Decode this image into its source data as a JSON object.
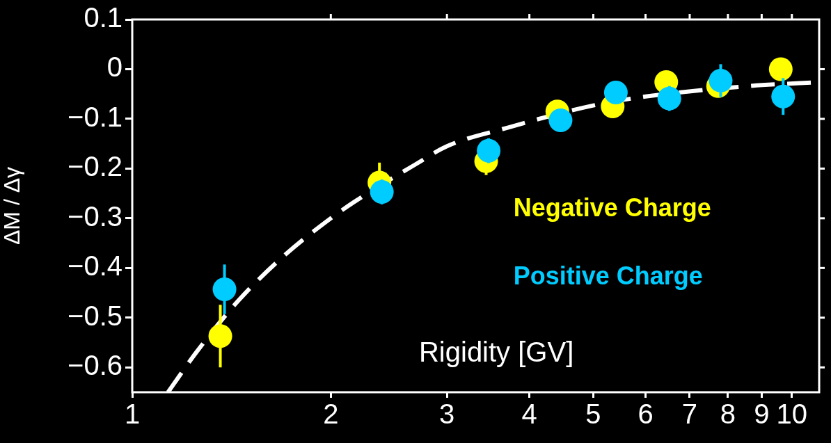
{
  "chart_data": {
    "type": "scatter",
    "xlabel": "Rigidity [GV]",
    "ylabel": "ΔM / Δγ",
    "log": "x",
    "grid": false,
    "legend": "right",
    "marker": "circle",
    "xlim": [
      1,
      11
    ],
    "xticks": [
      1,
      2,
      3,
      4,
      5,
      6,
      7,
      8,
      9,
      10
    ],
    "ylim": [
      -0.65,
      0.1
    ],
    "yticks": [
      {
        "value": 0.1,
        "label": "0.1"
      },
      {
        "value": 0,
        "label": "0"
      },
      {
        "value": -0.1,
        "label": "−0.1"
      },
      {
        "value": -0.2,
        "label": "−0.2"
      },
      {
        "value": -0.3,
        "label": "−0.3"
      },
      {
        "value": -0.4,
        "label": "−0.4"
      },
      {
        "value": -0.5,
        "label": "−0.5"
      },
      {
        "value": -0.6,
        "label": "−0.6"
      }
    ],
    "series": [
      {
        "type": "line",
        "color": "#ffffff",
        "line_style": "dashed",
        "marker": "none",
        "x": [
          1.133,
          1.25,
          1.45,
          1.7,
          2,
          2.2,
          2.7,
          3,
          3.7,
          5,
          6,
          8.6,
          11
        ],
        "values": [
          -0.65,
          -0.57,
          -0.465,
          -0.375,
          -0.3,
          -0.262,
          -0.19,
          -0.155,
          -0.118,
          -0.073,
          -0.055,
          -0.034,
          -0.026
        ]
      },
      {
        "name": "Negative Charge",
        "color": "#ffff00",
        "x": [
          1.36,
          2.37,
          3.44,
          4.41,
          5.35,
          6.45,
          7.73,
          9.62
        ],
        "values": [
          -0.537,
          -0.228,
          -0.185,
          -0.085,
          -0.075,
          -0.026,
          -0.034,
          0.0
        ],
        "errors": [
          0.063,
          0.04,
          0.028,
          0.02,
          0.02,
          0.015,
          0.02,
          0.015
        ]
      },
      {
        "name": "Positive Charge",
        "color": "#00ccff",
        "x": [
          1.38,
          2.39,
          3.47,
          4.46,
          5.41,
          6.52,
          7.8,
          9.7
        ],
        "values": [
          -0.443,
          -0.247,
          -0.164,
          -0.103,
          -0.047,
          -0.059,
          -0.023,
          -0.055
        ],
        "errors": [
          0.05,
          0.025,
          0.025,
          0.02,
          0.02,
          0.025,
          0.033,
          0.037
        ]
      }
    ]
  }
}
